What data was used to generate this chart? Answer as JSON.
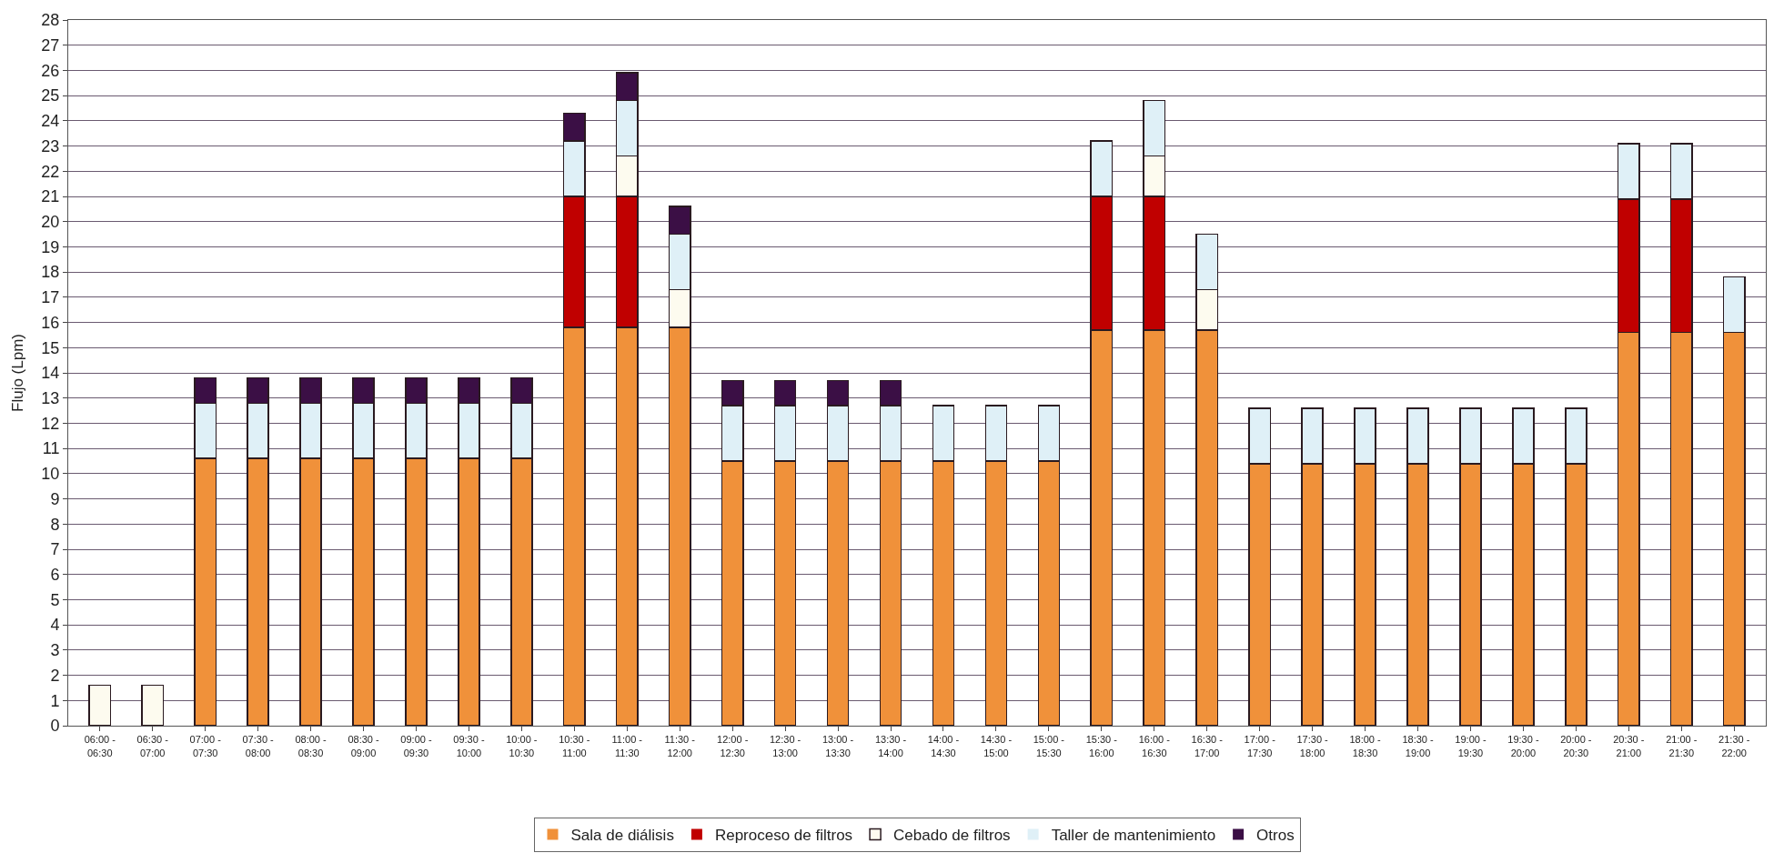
{
  "chart_data": {
    "type": "bar",
    "stacked": true,
    "ylabel": "Flujo (Lpm)",
    "ylim": [
      0,
      28
    ],
    "yticks": [
      0,
      1,
      2,
      3,
      4,
      5,
      6,
      7,
      8,
      9,
      10,
      11,
      12,
      13,
      14,
      15,
      16,
      17,
      18,
      19,
      20,
      21,
      22,
      23,
      24,
      25,
      26,
      27,
      28
    ],
    "grid": "y",
    "legend": "bottom",
    "categories": [
      "06:00 - 06:30",
      "06:30 - 07:00",
      "07:00 - 07:30",
      "07:30 - 08:00",
      "08:00 - 08:30",
      "08:30 - 09:00",
      "09:00 - 09:30",
      "09:30 - 10:00",
      "10:00 - 10:30",
      "10:30 - 11:00",
      "11:00 - 11:30",
      "11:30 - 12:00",
      "12:00 - 12:30",
      "12:30 - 13:00",
      "13:00 - 13:30",
      "13:30 - 14:00",
      "14:00 - 14:30",
      "14:30 - 15:00",
      "15:00 - 15:30",
      "15:30 - 16:00",
      "16:00 - 16:30",
      "16:30 - 17:00",
      "17:00 - 17:30",
      "17:30 - 18:00",
      "18:00 - 18:30",
      "18:30 - 19:00",
      "19:00 - 19:30",
      "19:30 - 20:00",
      "20:00 - 20:30",
      "20:30 - 21:00",
      "21:00 - 21:30",
      "21:30 - 22:00"
    ],
    "series": [
      {
        "name": "Sala de diálisis",
        "color": "#f0913a",
        "values": [
          0,
          0,
          10.6,
          10.6,
          10.6,
          10.6,
          10.6,
          10.6,
          10.6,
          15.8,
          15.8,
          15.8,
          10.5,
          10.5,
          10.5,
          10.5,
          10.5,
          10.5,
          10.5,
          15.7,
          15.7,
          15.7,
          10.4,
          10.4,
          10.4,
          10.4,
          10.4,
          10.4,
          10.4,
          15.6,
          15.6,
          15.6
        ]
      },
      {
        "name": "Reproceso de filtros",
        "color": "#c00000",
        "values": [
          0,
          0,
          0,
          0,
          0,
          0,
          0,
          0,
          0,
          5.2,
          5.2,
          0,
          0,
          0,
          0,
          0,
          0,
          0,
          0,
          5.3,
          5.3,
          0,
          0,
          0,
          0,
          0,
          0,
          0,
          0,
          5.3,
          5.3,
          0
        ]
      },
      {
        "name": "Cebado de filtros",
        "color": "#fdfbef",
        "values": [
          1.6,
          1.6,
          0,
          0,
          0,
          0,
          0,
          0,
          0,
          0,
          1.6,
          1.5,
          0,
          0,
          0,
          0,
          0,
          0,
          0,
          0,
          1.6,
          1.6,
          0,
          0,
          0,
          0,
          0,
          0,
          0,
          0,
          0,
          0
        ]
      },
      {
        "name": "Taller de mantenimiento",
        "color": "#dff0f7",
        "values": [
          0,
          0,
          2.2,
          2.2,
          2.2,
          2.2,
          2.2,
          2.2,
          2.2,
          2.2,
          2.2,
          2.2,
          2.2,
          2.2,
          2.2,
          2.2,
          2.2,
          2.2,
          2.2,
          2.2,
          2.2,
          2.2,
          2.2,
          2.2,
          2.2,
          2.2,
          2.2,
          2.2,
          2.2,
          2.2,
          2.2,
          2.2
        ]
      },
      {
        "name": "Otros",
        "color": "#3b0f45",
        "values": [
          0,
          0,
          1.0,
          1.0,
          1.0,
          1.0,
          1.0,
          1.0,
          1.0,
          1.1,
          1.1,
          1.1,
          1.0,
          1.0,
          1.0,
          1.0,
          0,
          0,
          0,
          0,
          0,
          0,
          0,
          0,
          0,
          0,
          0,
          0,
          0,
          0,
          0,
          0
        ]
      }
    ]
  }
}
